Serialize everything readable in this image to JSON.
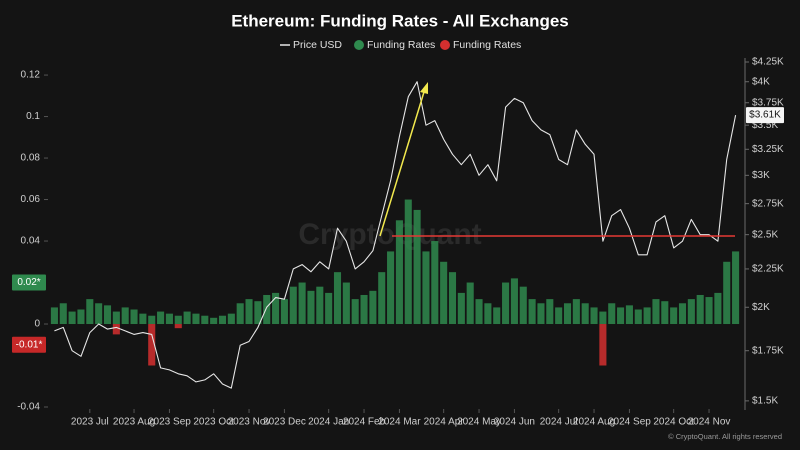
{
  "chart_data": {
    "type": "combo",
    "title": "Ethereum: Funding Rates - All Exchanges",
    "watermark": "CryptoQuant",
    "source": "© CryptoQuant. All rights reserved",
    "categories": [
      null,
      null,
      null,
      null,
      "2023 Jul",
      null,
      null,
      null,
      null,
      "2023 Aug",
      null,
      null,
      null,
      "2023 Sep",
      null,
      null,
      null,
      null,
      "2023 Oct",
      null,
      null,
      null,
      "2023 Nov",
      null,
      null,
      null,
      "2023 Dec",
      null,
      null,
      null,
      null,
      "2024 Jan",
      null,
      null,
      null,
      "2024 Feb",
      null,
      null,
      null,
      "2024 Mar",
      null,
      null,
      null,
      null,
      "2024 Apr",
      null,
      null,
      null,
      "2024 May",
      null,
      null,
      null,
      "2024 Jun",
      null,
      null,
      null,
      null,
      "2024 Jul",
      null,
      null,
      null,
      "2024 Aug",
      null,
      null,
      null,
      "2024 Sep",
      null,
      null,
      null,
      null,
      "2024 Oct",
      null,
      null,
      null,
      "2024 Nov",
      null,
      null,
      null
    ],
    "series": [
      {
        "name": "Price USD",
        "type": "line",
        "axis": "y2",
        "color": "#e6e6e6",
        "values": [
          1860,
          1880,
          1750,
          1720,
          1850,
          1900,
          1870,
          1880,
          1860,
          1840,
          1850,
          1840,
          1660,
          1650,
          1630,
          1620,
          1590,
          1600,
          1630,
          1580,
          1560,
          1780,
          1800,
          1880,
          2000,
          2060,
          2050,
          2250,
          2280,
          2230,
          2300,
          2250,
          2550,
          2450,
          2250,
          2300,
          2380,
          2650,
          2950,
          3380,
          3820,
          4000,
          3500,
          3550,
          3350,
          3200,
          3100,
          3200,
          3000,
          3100,
          2950,
          3700,
          3800,
          3750,
          3550,
          3450,
          3400,
          3150,
          3100,
          3450,
          3300,
          3200,
          2450,
          2650,
          2700,
          2550,
          2350,
          2350,
          2600,
          2650,
          2400,
          2450,
          2620,
          2500,
          2500,
          2450,
          3150,
          3610
        ]
      },
      {
        "name": "Funding Rates",
        "type": "bar",
        "color": "#2f8a4e",
        "values": [
          0.008,
          0.01,
          0.006,
          0.007,
          0.012,
          0.01,
          0.009,
          0.006,
          0.008,
          0.007,
          0.005,
          0.004,
          0.006,
          0.005,
          0.004,
          0.006,
          0.005,
          0.004,
          0.003,
          0.004,
          0.005,
          0.01,
          0.012,
          0.011,
          0.014,
          0.015,
          0.012,
          0.018,
          0.02,
          0.016,
          0.018,
          0.015,
          0.025,
          0.02,
          0.012,
          0.014,
          0.016,
          0.025,
          0.035,
          0.05,
          0.06,
          0.055,
          0.035,
          0.04,
          0.03,
          0.025,
          0.015,
          0.02,
          0.012,
          0.01,
          0.008,
          0.02,
          0.022,
          0.018,
          0.012,
          0.01,
          0.012,
          0.008,
          0.01,
          0.012,
          0.01,
          0.008,
          0.006,
          0.01,
          0.008,
          0.009,
          0.007,
          0.008,
          0.012,
          0.011,
          0.008,
          0.01,
          0.012,
          0.014,
          0.013,
          0.015,
          0.03,
          0.035
        ]
      },
      {
        "name": "Funding Rates",
        "type": "bar",
        "color": "#d32f2f",
        "values": [
          null,
          null,
          null,
          null,
          null,
          null,
          null,
          -0.005,
          null,
          null,
          null,
          -0.02,
          null,
          null,
          -0.002,
          null,
          null,
          null,
          null,
          null,
          null,
          null,
          null,
          null,
          null,
          null,
          null,
          null,
          null,
          null,
          null,
          null,
          null,
          null,
          null,
          null,
          null,
          null,
          null,
          null,
          null,
          null,
          null,
          null,
          null,
          null,
          null,
          null,
          null,
          null,
          null,
          null,
          null,
          null,
          null,
          null,
          null,
          null,
          null,
          null,
          null,
          null,
          -0.02,
          null,
          null,
          null,
          null,
          null,
          null,
          null,
          null,
          null,
          null,
          null,
          null,
          null,
          null,
          null
        ]
      }
    ],
    "ylim": [
      -0.04,
      0.1263
    ],
    "yticks": [
      -0.04,
      0,
      0.04,
      0.06,
      0.08,
      0.1,
      0.12
    ],
    "y2lim": [
      1472,
      4250
    ],
    "y2log": true,
    "y2ticks": [
      {
        "value": 1500,
        "label": "$1.5K"
      },
      {
        "value": 1750,
        "label": "$1.75K"
      },
      {
        "value": 2000,
        "label": "$2K"
      },
      {
        "value": 2250,
        "label": "$2.25K"
      },
      {
        "value": 2500,
        "label": "$2.5K"
      },
      {
        "value": 2750,
        "label": "$2.75K"
      },
      {
        "value": 3000,
        "label": "$3K"
      },
      {
        "value": 3250,
        "label": "$3.25K"
      },
      {
        "value": 3500,
        "label": "$3.5K"
      },
      {
        "value": 3750,
        "label": "$3.75K"
      },
      {
        "value": 4000,
        "label": "$4K"
      },
      {
        "value": 4250,
        "label": "$4.25K"
      }
    ],
    "badges": [
      {
        "value": 0.02,
        "label": "0.02*",
        "color": "#2f8a4e"
      },
      {
        "value": -0.01,
        "label": "-0.01*",
        "color": "#c62828"
      }
    ],
    "price_badge": {
      "value": 3610,
      "label": "$3.61K"
    },
    "grid": false
  }
}
